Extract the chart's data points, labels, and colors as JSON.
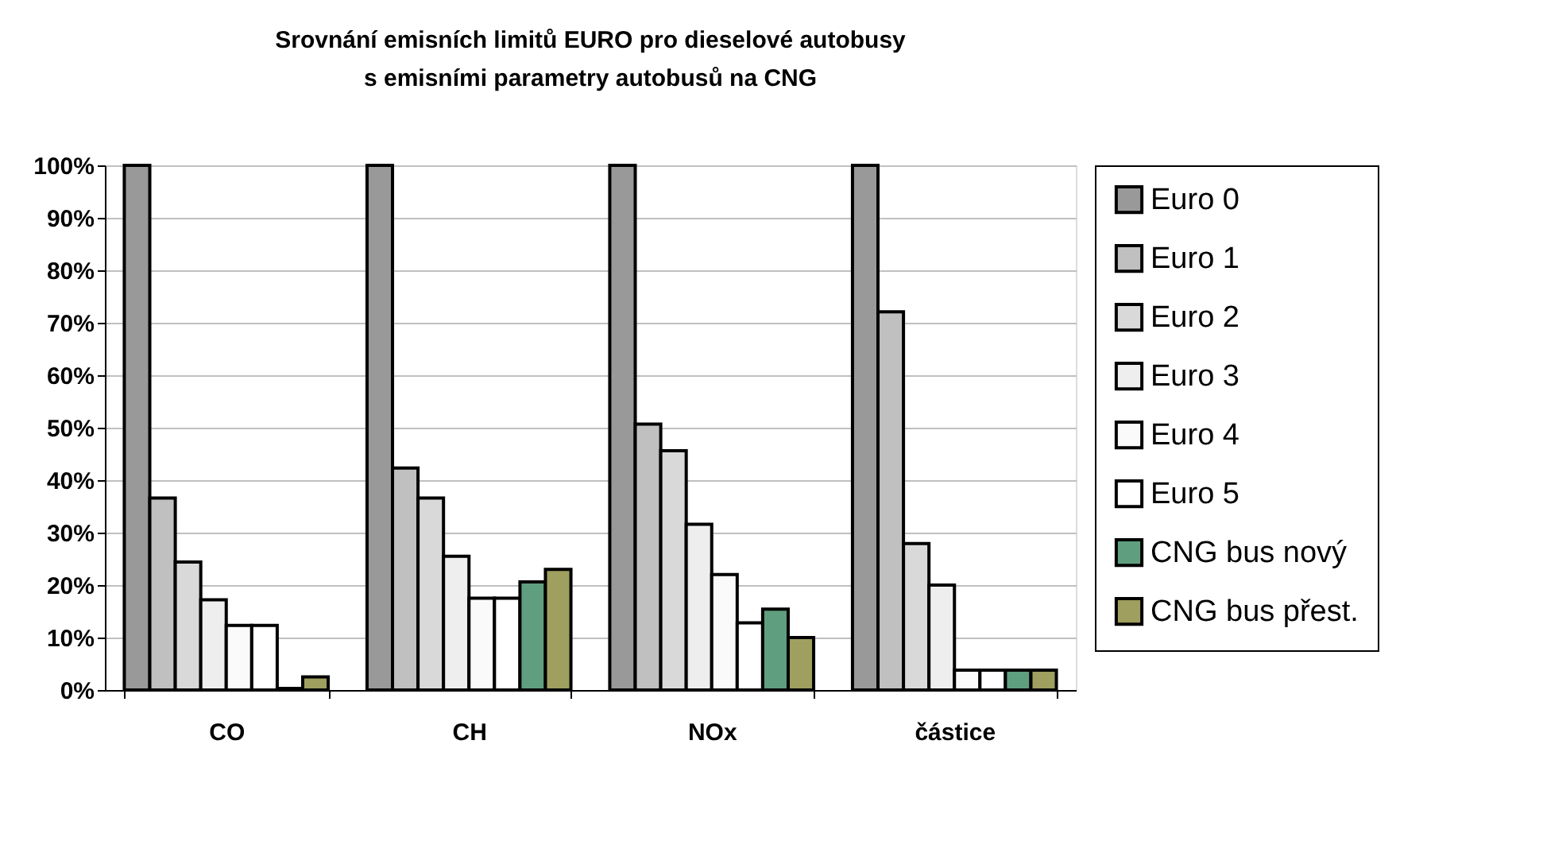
{
  "chart_data": {
    "type": "bar",
    "title": "Srovnání emisních limitů EURO pro dieselové autobusy\ns emisními parametry autobusů na CNG",
    "categories": [
      "CO",
      "CH",
      "NOx",
      "částice"
    ],
    "series": [
      {
        "name": "Euro 0",
        "color": "#999999",
        "values": [
          100,
          100,
          100,
          100
        ]
      },
      {
        "name": "Euro 1",
        "color": "#c0c0c0",
        "values": [
          36.6,
          42.3,
          50.7,
          72.1
        ]
      },
      {
        "name": "Euro 2",
        "color": "#d9d9d9",
        "values": [
          24.4,
          36.6,
          45.6,
          27.9
        ]
      },
      {
        "name": "Euro 3",
        "color": "#eeeeee",
        "values": [
          17.2,
          25.5,
          31.6,
          20.0
        ]
      },
      {
        "name": "Euro 4",
        "color": "#fafafa",
        "values": [
          12.3,
          17.5,
          22.0,
          3.8
        ]
      },
      {
        "name": "Euro 5",
        "color": "#ffffff",
        "values": [
          12.3,
          17.5,
          12.8,
          3.8
        ]
      },
      {
        "name": "CNG bus nový",
        "color": "#5f9f7f",
        "values": [
          0.3,
          20.6,
          15.4,
          3.8
        ]
      },
      {
        "name": "CNG bus přest.",
        "color": "#9f9f5f",
        "values": [
          2.5,
          23.0,
          10.0,
          3.8
        ]
      }
    ],
    "ylim": [
      0,
      100
    ],
    "yticks": [
      {
        "value": 0,
        "label": "0%"
      },
      {
        "value": 10,
        "label": "10%"
      },
      {
        "value": 20,
        "label": "20%"
      },
      {
        "value": 30,
        "label": "30%"
      },
      {
        "value": 40,
        "label": "40%"
      },
      {
        "value": 50,
        "label": "50%"
      },
      {
        "value": 60,
        "label": "60%"
      },
      {
        "value": 70,
        "label": "70%"
      },
      {
        "value": 80,
        "label": "80%"
      },
      {
        "value": 90,
        "label": "90%"
      },
      {
        "value": 100,
        "label": "100%"
      }
    ],
    "grid": "y",
    "legend": "right"
  }
}
